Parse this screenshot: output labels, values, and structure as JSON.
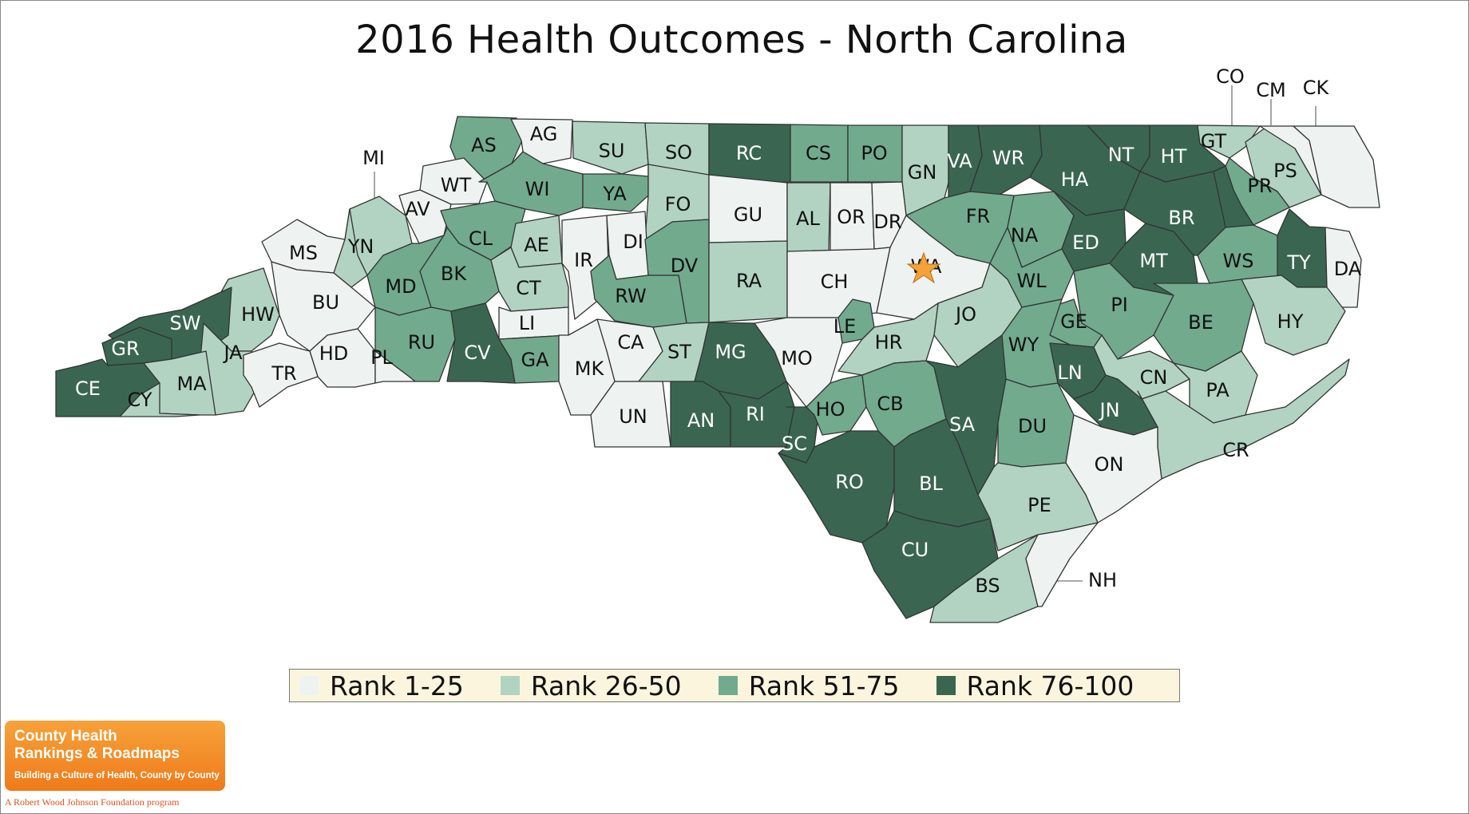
{
  "title": "2016 Health Outcomes - North Carolina",
  "colors": {
    "rank_1_25": "#eef3f1",
    "rank_26_50": "#b2d3c2",
    "rank_51_75": "#72aa8e",
    "rank_76_100": "#3a6651",
    "border": "#333333",
    "legend_bg": "#fcf5de",
    "star": "#f4a23a"
  },
  "legend": [
    {
      "label": "Rank 1-25",
      "tier": "rank_1_25"
    },
    {
      "label": "Rank 26-50",
      "tier": "rank_26_50"
    },
    {
      "label": "Rank 51-75",
      "tier": "rank_51_75"
    },
    {
      "label": "Rank 76-100",
      "tier": "rank_76_100"
    }
  ],
  "counties": [
    {
      "code": "AS",
      "tier": "rank_51_75"
    },
    {
      "code": "AG",
      "tier": "rank_1_25"
    },
    {
      "code": "SU",
      "tier": "rank_26_50"
    },
    {
      "code": "SO",
      "tier": "rank_26_50"
    },
    {
      "code": "RC",
      "tier": "rank_76_100"
    },
    {
      "code": "CS",
      "tier": "rank_51_75"
    },
    {
      "code": "PO",
      "tier": "rank_51_75"
    },
    {
      "code": "GN",
      "tier": "rank_26_50"
    },
    {
      "code": "VA",
      "tier": "rank_76_100"
    },
    {
      "code": "WR",
      "tier": "rank_76_100"
    },
    {
      "code": "HA",
      "tier": "rank_76_100"
    },
    {
      "code": "NT",
      "tier": "rank_76_100"
    },
    {
      "code": "HT",
      "tier": "rank_76_100"
    },
    {
      "code": "GT",
      "tier": "rank_26_50"
    },
    {
      "code": "PS",
      "tier": "rank_26_50"
    },
    {
      "code": "PR",
      "tier": "rank_51_75"
    },
    {
      "code": "CO",
      "tier": "rank_76_100"
    },
    {
      "code": "CM",
      "tier": "rank_1_25"
    },
    {
      "code": "CK",
      "tier": "rank_1_25"
    },
    {
      "code": "MI",
      "tier": "rank_26_50"
    },
    {
      "code": "WT",
      "tier": "rank_1_25"
    },
    {
      "code": "AV",
      "tier": "rank_1_25"
    },
    {
      "code": "WI",
      "tier": "rank_51_75"
    },
    {
      "code": "YA",
      "tier": "rank_51_75"
    },
    {
      "code": "FO",
      "tier": "rank_26_50"
    },
    {
      "code": "GU",
      "tier": "rank_1_25"
    },
    {
      "code": "AL",
      "tier": "rank_26_50"
    },
    {
      "code": "OR",
      "tier": "rank_1_25"
    },
    {
      "code": "DR",
      "tier": "rank_1_25"
    },
    {
      "code": "FR",
      "tier": "rank_51_75"
    },
    {
      "code": "NA",
      "tier": "rank_51_75"
    },
    {
      "code": "ED",
      "tier": "rank_76_100"
    },
    {
      "code": "MT",
      "tier": "rank_76_100"
    },
    {
      "code": "BR",
      "tier": "rank_76_100"
    },
    {
      "code": "WS",
      "tier": "rank_51_75"
    },
    {
      "code": "TY",
      "tier": "rank_76_100"
    },
    {
      "code": "DA",
      "tier": "rank_1_25"
    },
    {
      "code": "MS",
      "tier": "rank_1_25"
    },
    {
      "code": "YN",
      "tier": "rank_26_50"
    },
    {
      "code": "CL",
      "tier": "rank_51_75"
    },
    {
      "code": "AE",
      "tier": "rank_26_50"
    },
    {
      "code": "IR",
      "tier": "rank_1_25"
    },
    {
      "code": "DI",
      "tier": "rank_1_25"
    },
    {
      "code": "DV",
      "tier": "rank_51_75"
    },
    {
      "code": "RA",
      "tier": "rank_26_50"
    },
    {
      "code": "CH",
      "tier": "rank_1_25"
    },
    {
      "code": "WA",
      "tier": "rank_1_25"
    },
    {
      "code": "JO",
      "tier": "rank_26_50"
    },
    {
      "code": "WL",
      "tier": "rank_51_75"
    },
    {
      "code": "PI",
      "tier": "rank_51_75"
    },
    {
      "code": "BE",
      "tier": "rank_51_75"
    },
    {
      "code": "HY",
      "tier": "rank_26_50"
    },
    {
      "code": "MD",
      "tier": "rank_51_75"
    },
    {
      "code": "BK",
      "tier": "rank_51_75"
    },
    {
      "code": "CT",
      "tier": "rank_26_50"
    },
    {
      "code": "RW",
      "tier": "rank_51_75"
    },
    {
      "code": "LE",
      "tier": "rank_51_75"
    },
    {
      "code": "HR",
      "tier": "rank_26_50"
    },
    {
      "code": "GE",
      "tier": "rank_51_75"
    },
    {
      "code": "WY",
      "tier": "rank_51_75"
    },
    {
      "code": "BU",
      "tier": "rank_1_25"
    },
    {
      "code": "HW",
      "tier": "rank_26_50"
    },
    {
      "code": "SW",
      "tier": "rank_76_100"
    },
    {
      "code": "GR",
      "tier": "rank_76_100"
    },
    {
      "code": "JA",
      "tier": "rank_26_50"
    },
    {
      "code": "RU",
      "tier": "rank_51_75"
    },
    {
      "code": "LI",
      "tier": "rank_1_25"
    },
    {
      "code": "CV",
      "tier": "rank_76_100"
    },
    {
      "code": "GA",
      "tier": "rank_51_75"
    },
    {
      "code": "CA",
      "tier": "rank_1_25"
    },
    {
      "code": "ST",
      "tier": "rank_26_50"
    },
    {
      "code": "MG",
      "tier": "rank_76_100"
    },
    {
      "code": "MO",
      "tier": "rank_1_25"
    },
    {
      "code": "HD",
      "tier": "rank_1_25"
    },
    {
      "code": "PL",
      "tier": "rank_1_25"
    },
    {
      "code": "TR",
      "tier": "rank_1_25"
    },
    {
      "code": "MA",
      "tier": "rank_26_50"
    },
    {
      "code": "CE",
      "tier": "rank_76_100"
    },
    {
      "code": "CY",
      "tier": "rank_26_50"
    },
    {
      "code": "MK",
      "tier": "rank_1_25"
    },
    {
      "code": "UN",
      "tier": "rank_1_25"
    },
    {
      "code": "AN",
      "tier": "rank_76_100"
    },
    {
      "code": "RI",
      "tier": "rank_76_100"
    },
    {
      "code": "SC",
      "tier": "rank_76_100"
    },
    {
      "code": "HO",
      "tier": "rank_51_75"
    },
    {
      "code": "CB",
      "tier": "rank_51_75"
    },
    {
      "code": "SA",
      "tier": "rank_76_100"
    },
    {
      "code": "DU",
      "tier": "rank_51_75"
    },
    {
      "code": "LN",
      "tier": "rank_76_100"
    },
    {
      "code": "JN",
      "tier": "rank_76_100"
    },
    {
      "code": "CN",
      "tier": "rank_26_50"
    },
    {
      "code": "PA",
      "tier": "rank_26_50"
    },
    {
      "code": "CR",
      "tier": "rank_26_50"
    },
    {
      "code": "ON",
      "tier": "rank_1_25"
    },
    {
      "code": "RO",
      "tier": "rank_76_100"
    },
    {
      "code": "BL",
      "tier": "rank_76_100"
    },
    {
      "code": "CU",
      "tier": "rank_76_100"
    },
    {
      "code": "PE",
      "tier": "rank_26_50"
    },
    {
      "code": "BS",
      "tier": "rank_26_50"
    },
    {
      "code": "NH",
      "tier": "rank_1_25"
    }
  ],
  "logo": {
    "line1": "County Health",
    "line2": "Rankings & Roadmaps",
    "line3": "Building a Culture of Health, County by County",
    "tagline": "A Robert Wood Johnson Foundation program"
  }
}
